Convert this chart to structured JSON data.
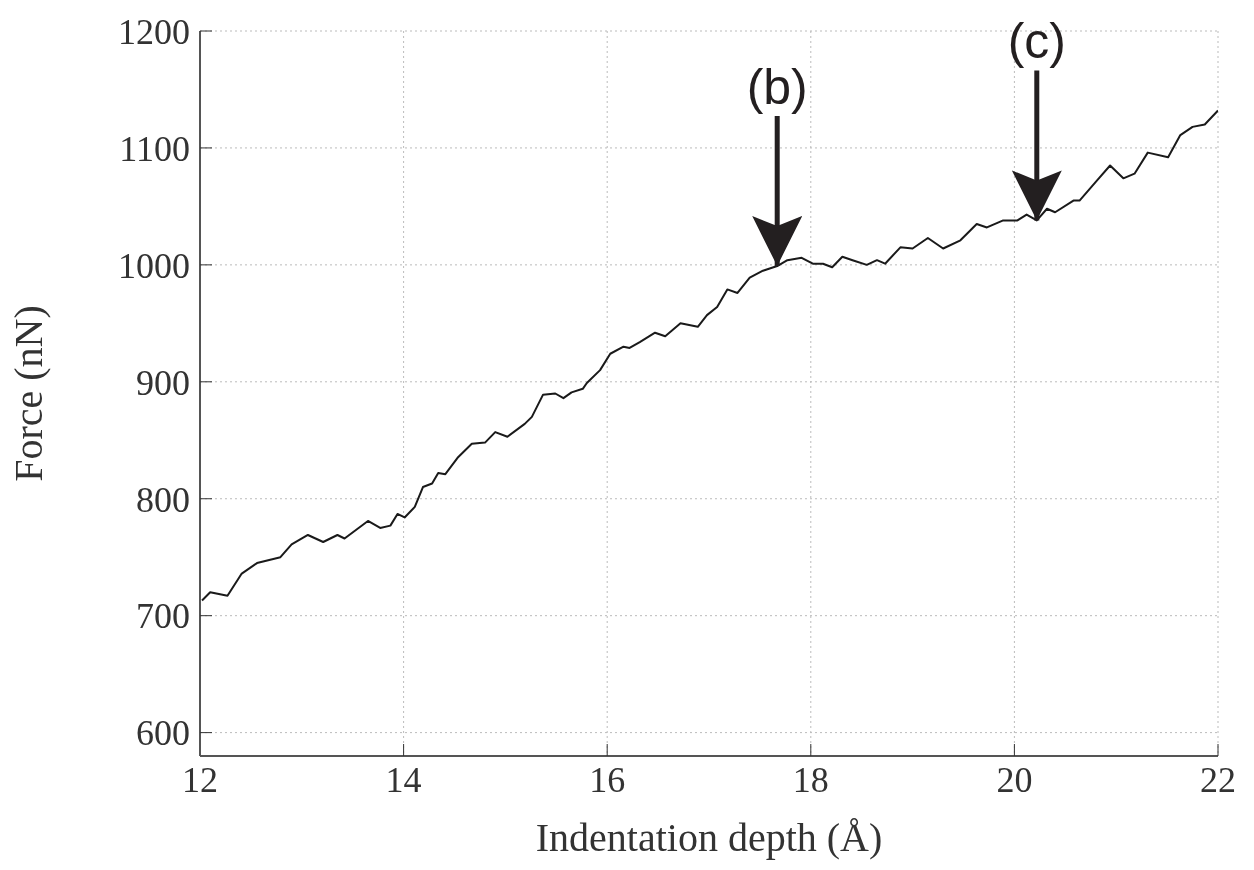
{
  "chart_data": {
    "type": "line",
    "xlabel": "Indentation depth (Å)",
    "ylabel": "Force (nN)",
    "xlim": [
      12,
      22
    ],
    "xticks": [
      12,
      14,
      16,
      18,
      20,
      22
    ],
    "ylim": [
      580,
      1200
    ],
    "yticks": [
      600,
      700,
      800,
      900,
      1000,
      1100,
      1200
    ],
    "grid": true,
    "legend": false,
    "marker": "none",
    "line_style": "solid",
    "annotations": [
      {
        "text": "(b)",
        "x": 17.67,
        "y": 999
      },
      {
        "text": "(c)",
        "x": 20.22,
        "y": 1038
      }
    ],
    "series": [
      {
        "color": "#1a1a1a",
        "x": [
          12.02,
          12.1,
          12.27,
          12.41,
          12.56,
          12.79,
          12.9,
          13.06,
          13.21,
          13.35,
          13.42,
          13.65,
          13.77,
          13.87,
          13.94,
          14.01,
          14.11,
          14.19,
          14.28,
          14.34,
          14.41,
          14.53,
          14.67,
          14.8,
          14.9,
          15.02,
          15.19,
          15.26,
          15.37,
          15.49,
          15.57,
          15.65,
          15.76,
          15.8,
          15.93,
          16.03,
          16.16,
          16.22,
          16.32,
          16.47,
          16.57,
          16.72,
          16.89,
          16.98,
          17.08,
          17.18,
          17.28,
          17.4,
          17.53,
          17.67,
          17.77,
          17.91,
          18.02,
          18.12,
          18.21,
          18.31,
          18.41,
          18.55,
          18.65,
          18.73,
          18.88,
          19.0,
          19.15,
          19.3,
          19.47,
          19.63,
          19.73,
          19.89,
          20.03,
          20.12,
          20.22,
          20.32,
          20.4,
          20.58,
          20.64,
          20.81,
          20.94,
          21.07,
          21.18,
          21.31,
          21.51,
          21.63,
          21.75,
          21.87,
          22.0
        ],
        "values": [
          713,
          720,
          717,
          736,
          745,
          750,
          761,
          769,
          763,
          769,
          766,
          781,
          775,
          777,
          787,
          784,
          793,
          810,
          813,
          822,
          821,
          835,
          847,
          848,
          857,
          853,
          864,
          870,
          889,
          890,
          886,
          891,
          894,
          899,
          910,
          924,
          930,
          929,
          934,
          942,
          939,
          950,
          947,
          957,
          964,
          979,
          976,
          989,
          995,
          999,
          1004,
          1006,
          1001,
          1001,
          998,
          1007,
          1004,
          1000,
          1004,
          1001,
          1015,
          1014,
          1023,
          1014,
          1021,
          1035,
          1032,
          1038,
          1038,
          1043,
          1038,
          1048,
          1045,
          1055,
          1055,
          1072,
          1085,
          1074,
          1078,
          1096,
          1092,
          1111,
          1118,
          1120,
          1132
        ]
      }
    ]
  }
}
